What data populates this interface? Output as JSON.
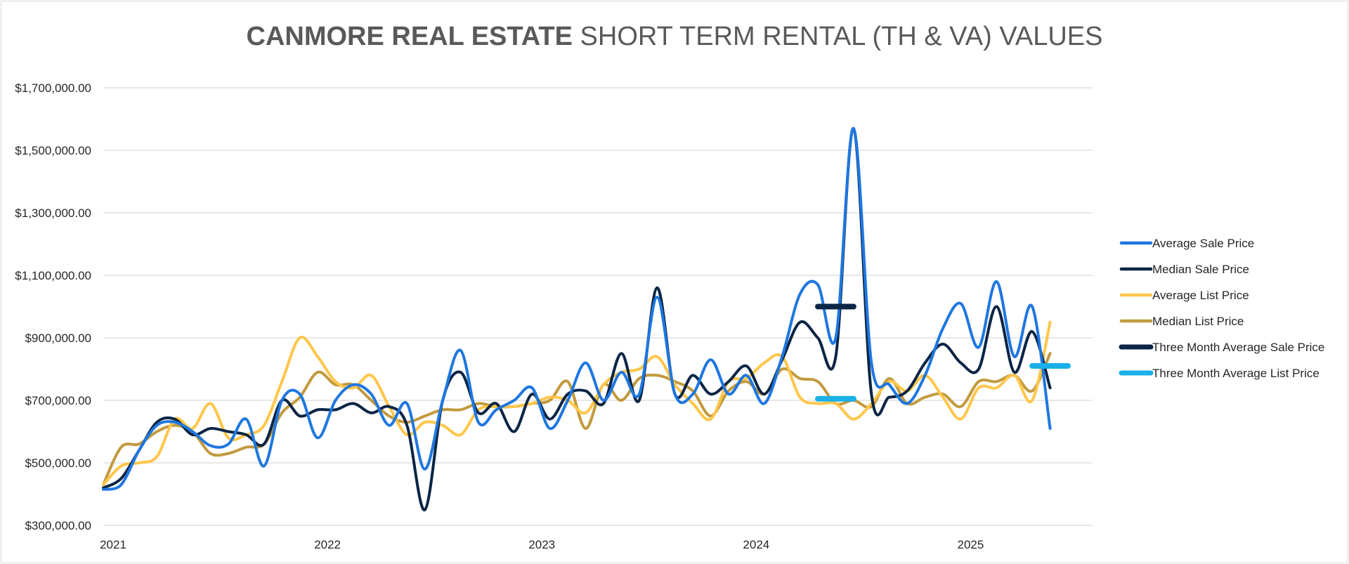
{
  "chart_data": {
    "type": "line",
    "title_bold": "CANMORE REAL ESTATE",
    "title_rest": " SHORT TERM RENTAL (TH & VA) VALUES",
    "xlabel": "",
    "ylabel": "",
    "x_ticks": [
      "2021",
      "2022",
      "2023",
      "2024",
      "2025"
    ],
    "y_ticks": [
      "$300,000.00",
      "$500,000.00",
      "$700,000.00",
      "$900,000.00",
      "$1,100,000.00",
      "$1,300,000.00",
      "$1,500,000.00",
      "$1,700,000.00"
    ],
    "ylim": [
      300000,
      1700000
    ],
    "x_domain": [
      "2021-01",
      "2025-07"
    ],
    "grid": "horizontal",
    "legend": "right",
    "months": [
      "2021-01",
      "2021-02",
      "2021-03",
      "2021-04",
      "2021-05",
      "2021-06",
      "2021-07",
      "2021-08",
      "2021-09",
      "2021-10",
      "2021-11",
      "2021-12",
      "2022-01",
      "2022-02",
      "2022-03",
      "2022-04",
      "2022-05",
      "2022-06",
      "2022-07",
      "2022-08",
      "2022-09",
      "2022-10",
      "2022-11",
      "2022-12",
      "2023-01",
      "2023-02",
      "2023-03",
      "2023-04",
      "2023-05",
      "2023-06",
      "2023-07",
      "2023-08",
      "2023-09",
      "2023-10",
      "2023-11",
      "2023-12",
      "2024-01",
      "2024-02",
      "2024-03",
      "2024-04",
      "2024-05",
      "2024-06",
      "2024-07",
      "2024-08",
      "2024-09",
      "2024-10",
      "2024-11",
      "2024-12",
      "2025-01",
      "2025-02",
      "2025-03",
      "2025-04",
      "2025-05",
      "2025-06",
      "2025-07"
    ],
    "series": [
      {
        "name": "Average Sale Price",
        "color": "#1f77e0",
        "width": 4,
        "values": [
          415000,
          430000,
          540000,
          620000,
          630000,
          600000,
          555000,
          560000,
          640000,
          490000,
          700000,
          720000,
          580000,
          700000,
          750000,
          720000,
          620000,
          690000,
          480000,
          700000,
          860000,
          630000,
          670000,
          700000,
          740000,
          610000,
          700000,
          820000,
          700000,
          790000,
          720000,
          1030000,
          720000,
          720000,
          830000,
          720000,
          780000,
          690000,
          840000,
          1040000,
          1070000,
          900000,
          1570000,
          820000,
          750000,
          690000,
          780000,
          930000,
          1010000,
          870000,
          1080000,
          840000,
          1000000,
          610000,
          null
        ]
      },
      {
        "name": "Median Sale Price",
        "color": "#0b2545",
        "width": 4,
        "values": [
          420000,
          450000,
          540000,
          630000,
          640000,
          590000,
          610000,
          600000,
          590000,
          560000,
          700000,
          650000,
          670000,
          670000,
          690000,
          660000,
          680000,
          620000,
          350000,
          700000,
          790000,
          660000,
          690000,
          600000,
          720000,
          640000,
          720000,
          730000,
          690000,
          850000,
          700000,
          1060000,
          720000,
          780000,
          720000,
          760000,
          810000,
          720000,
          830000,
          950000,
          900000,
          840000,
          1570000,
          720000,
          710000,
          730000,
          820000,
          880000,
          820000,
          800000,
          1000000,
          790000,
          920000,
          740000,
          null
        ]
      },
      {
        "name": "Average List Price",
        "color": "#ffc64a",
        "width": 4,
        "values": [
          430000,
          490000,
          500000,
          520000,
          640000,
          610000,
          690000,
          580000,
          590000,
          620000,
          760000,
          900000,
          840000,
          760000,
          740000,
          780000,
          680000,
          590000,
          630000,
          620000,
          590000,
          670000,
          680000,
          680000,
          690000,
          710000,
          700000,
          660000,
          750000,
          790000,
          800000,
          840000,
          750000,
          690000,
          640000,
          760000,
          770000,
          820000,
          840000,
          710000,
          690000,
          690000,
          640000,
          690000,
          760000,
          730000,
          780000,
          710000,
          640000,
          740000,
          740000,
          780000,
          700000,
          950000,
          null
        ]
      },
      {
        "name": "Median List Price",
        "color": "#c29a3e",
        "width": 4,
        "values": [
          430000,
          550000,
          560000,
          600000,
          620000,
          600000,
          530000,
          530000,
          550000,
          560000,
          660000,
          710000,
          790000,
          750000,
          750000,
          700000,
          650000,
          630000,
          650000,
          670000,
          670000,
          690000,
          680000,
          680000,
          690000,
          700000,
          760000,
          610000,
          750000,
          700000,
          770000,
          780000,
          760000,
          730000,
          650000,
          730000,
          760000,
          720000,
          800000,
          770000,
          760000,
          690000,
          700000,
          680000,
          770000,
          690000,
          710000,
          720000,
          680000,
          760000,
          760000,
          780000,
          730000,
          850000,
          null
        ]
      },
      {
        "name": "Three Month Average Sale Price",
        "color": "#0b2545",
        "width": 8,
        "segments": [
          {
            "from": "2024-05",
            "to": "2024-07",
            "value": 1000000
          }
        ]
      },
      {
        "name": "Three Month Average List Price",
        "color": "#1ab0e8",
        "width": 8,
        "segments": [
          {
            "from": "2024-05",
            "to": "2024-07",
            "value": 705000
          },
          {
            "from": "2025-05",
            "to": "2025-07",
            "value": 810000
          }
        ]
      }
    ]
  }
}
